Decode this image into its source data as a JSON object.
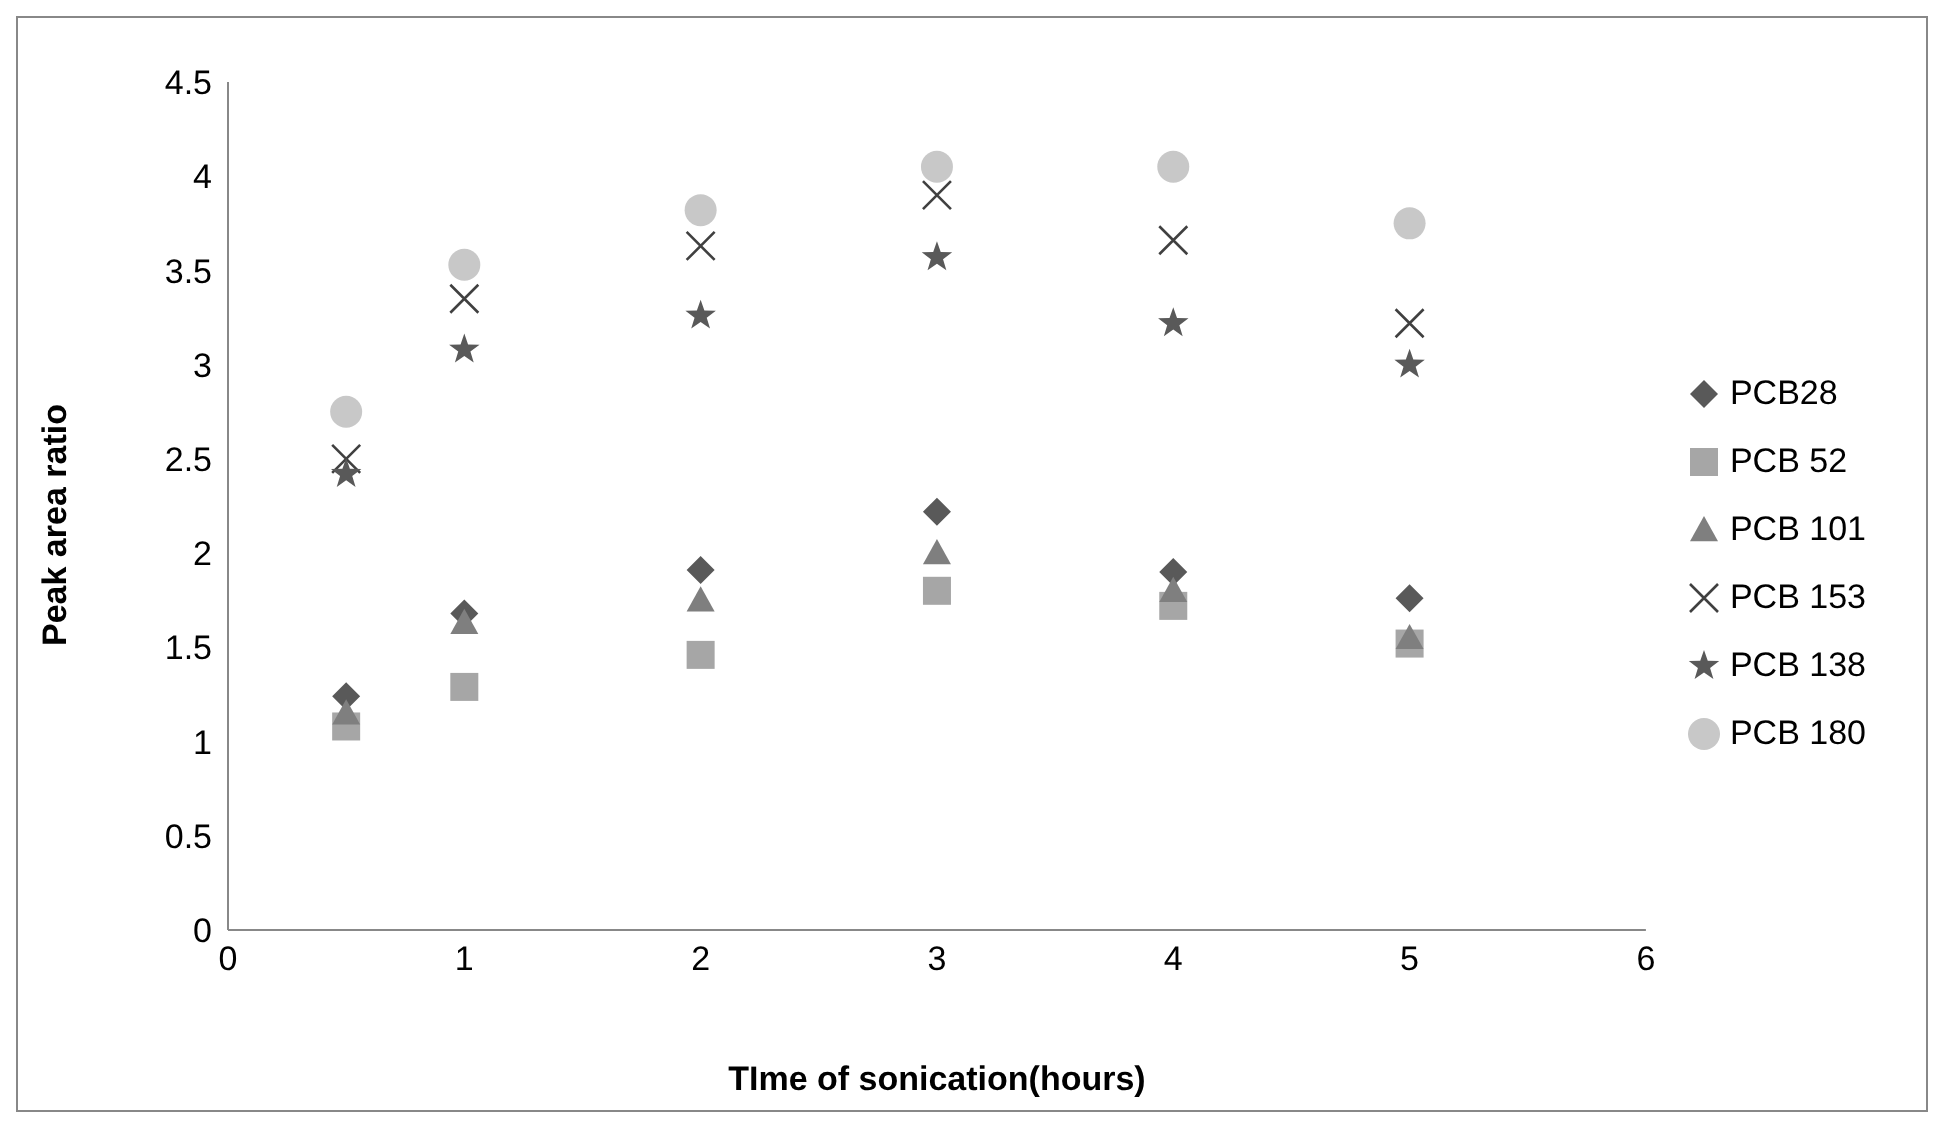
{
  "chart_data": {
    "type": "scatter",
    "xlabel": "TIme of sonication(hours)",
    "ylabel": "Peak area ratio",
    "x": [
      0.5,
      1,
      2,
      3,
      4,
      5
    ],
    "xlim": [
      0,
      6
    ],
    "xticks": [
      0,
      1,
      2,
      3,
      4,
      5,
      6
    ],
    "ylim": [
      0,
      4.5
    ],
    "yticks": [
      0,
      0.5,
      1,
      1.5,
      2,
      2.5,
      3,
      3.5,
      4,
      4.5
    ],
    "grid": false,
    "legend": "right",
    "series": [
      {
        "name": "PCB28",
        "color": "#595959",
        "marker": "diamond",
        "values": [
          1.24,
          1.68,
          1.91,
          2.22,
          1.9,
          1.76
        ]
      },
      {
        "name": "PCB 52",
        "color": "#a6a6a6",
        "marker": "square",
        "values": [
          1.08,
          1.29,
          1.46,
          1.8,
          1.72,
          1.52
        ]
      },
      {
        "name": "PCB 101",
        "color": "#7f7f7f",
        "marker": "triangle",
        "values": [
          1.15,
          1.63,
          1.75,
          2.0,
          1.8,
          1.55
        ]
      },
      {
        "name": "PCB 153",
        "color": "#404040",
        "marker": "cross",
        "values": [
          2.5,
          3.35,
          3.63,
          3.9,
          3.66,
          3.22
        ]
      },
      {
        "name": "PCB 138",
        "color": "#595959",
        "marker": "star",
        "values": [
          2.42,
          3.08,
          3.26,
          3.57,
          3.22,
          3.0
        ]
      },
      {
        "name": "PCB 180",
        "color": "#c8c8c8",
        "marker": "circle",
        "values": [
          2.75,
          3.53,
          3.82,
          4.05,
          4.05,
          3.75
        ]
      }
    ]
  }
}
